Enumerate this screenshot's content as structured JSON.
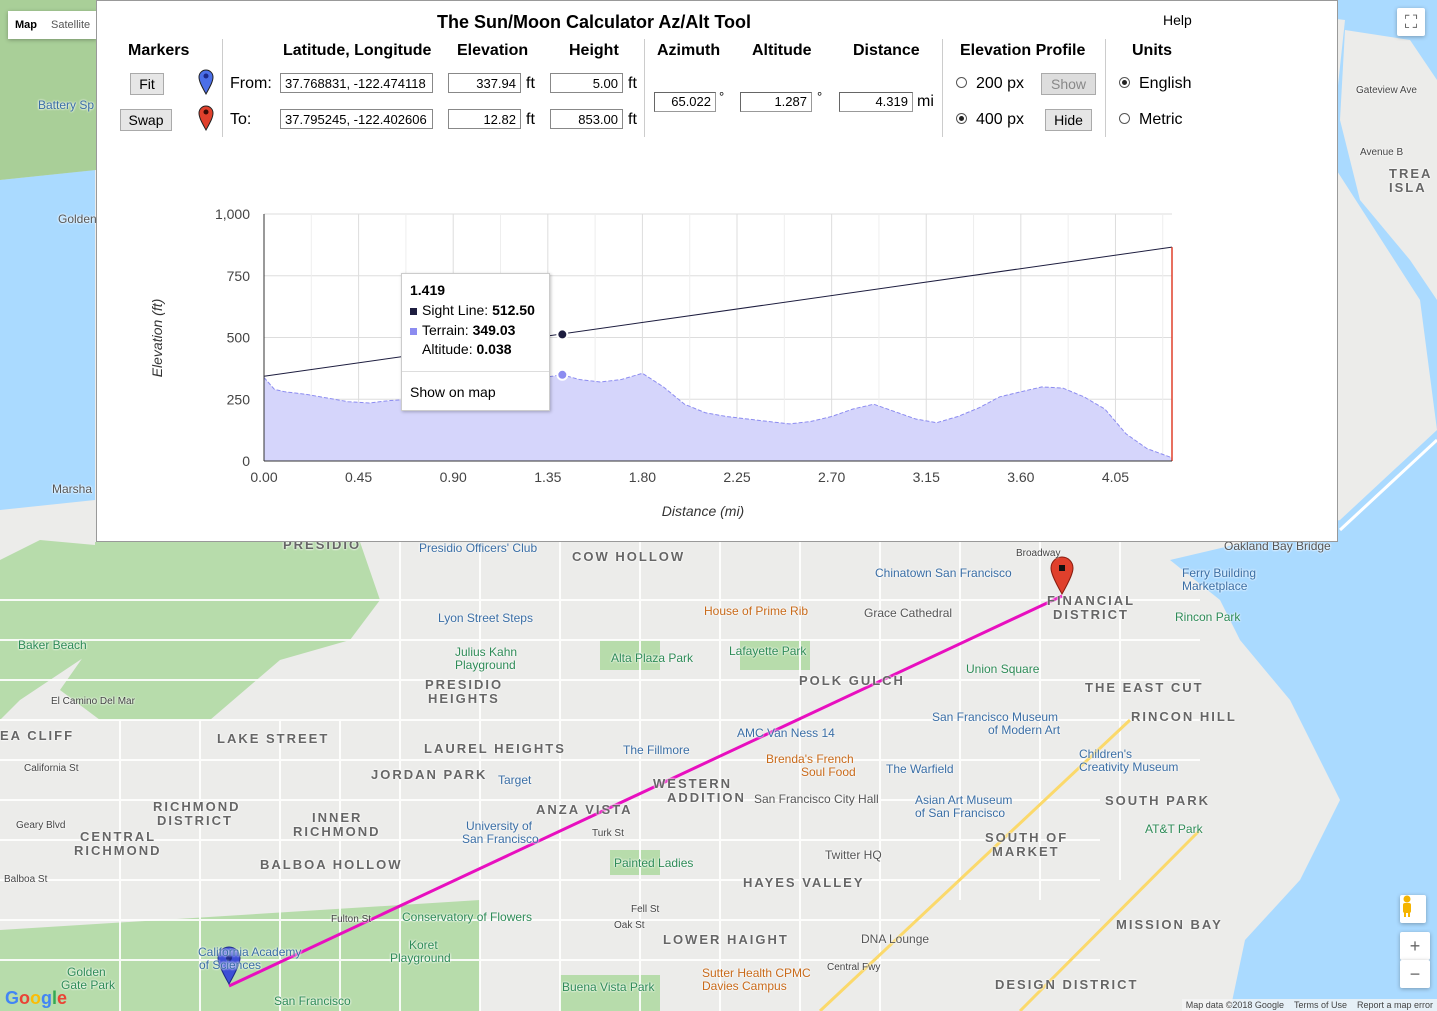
{
  "map": {
    "type_control": {
      "map": "Map",
      "satellite": "Satellite"
    },
    "labels": [
      {
        "t": "Battery Sp",
        "c": "poi-blue"
      },
      {
        "t": "Golden",
        "c": ""
      },
      {
        "t": "Marsha",
        "c": ""
      },
      {
        "t": "PRESIDIO",
        "c": "district"
      },
      {
        "t": "Presidio Officers' Club",
        "c": "poi-blue"
      },
      {
        "t": "COW HOLLOW",
        "c": "district"
      },
      {
        "t": "Chinatown San Francisco",
        "c": "poi-blue"
      },
      {
        "t": "Broadway",
        "c": "street"
      },
      {
        "t": "Oakland Bay Bridge",
        "c": ""
      },
      {
        "t": "Ferry Building",
        "c": "poi-blue"
      },
      {
        "t": "Marketplace",
        "c": "poi-blue"
      },
      {
        "t": "House of Prime Rib",
        "c": "poi-orange"
      },
      {
        "t": "Grace Cathedral",
        "c": ""
      },
      {
        "t": "FINANCIAL",
        "c": "district"
      },
      {
        "t": "DISTRICT",
        "c": "district"
      },
      {
        "t": "Rincon Park",
        "c": "poi-green"
      },
      {
        "t": "Baker Beach",
        "c": "poi-green"
      },
      {
        "t": "Lyon Street Steps",
        "c": "poi-blue"
      },
      {
        "t": "Lafayette Park",
        "c": "poi-green"
      },
      {
        "t": "Julius Kahn",
        "c": "poi-green"
      },
      {
        "t": "Playground",
        "c": "poi-green"
      },
      {
        "t": "Alta Plaza Park",
        "c": "poi-green"
      },
      {
        "t": "Union Square",
        "c": "poi-green"
      },
      {
        "t": "POLK GULCH",
        "c": "district"
      },
      {
        "t": "THE EAST CUT",
        "c": "district"
      },
      {
        "t": "PRESIDIO",
        "c": "district"
      },
      {
        "t": "HEIGHTS",
        "c": "district"
      },
      {
        "t": "RINCON HILL",
        "c": "district"
      },
      {
        "t": "San Francisco Museum",
        "c": "poi-blue"
      },
      {
        "t": "of Modern Art",
        "c": "poi-blue"
      },
      {
        "t": "EA CLIFF",
        "c": "district"
      },
      {
        "t": "LAKE STREET",
        "c": "district"
      },
      {
        "t": "LAUREL HEIGHTS",
        "c": "district"
      },
      {
        "t": "AMC Van Ness 14",
        "c": "poi-blue"
      },
      {
        "t": "The Fillmore",
        "c": "poi-blue"
      },
      {
        "t": "Children's",
        "c": "poi-blue"
      },
      {
        "t": "Creativity Museum",
        "c": "poi-blue"
      },
      {
        "t": "Brenda's French",
        "c": "poi-orange"
      },
      {
        "t": "Soul Food",
        "c": "poi-orange"
      },
      {
        "t": "The Warfield",
        "c": "poi-blue"
      },
      {
        "t": "JORDAN PARK",
        "c": "district"
      },
      {
        "t": "Target",
        "c": "poi-blue"
      },
      {
        "t": "WESTERN",
        "c": "district"
      },
      {
        "t": "ADDITION",
        "c": "district"
      },
      {
        "t": "RICHMOND",
        "c": "district"
      },
      {
        "t": "DISTRICT",
        "c": "district"
      },
      {
        "t": "ANZA VISTA",
        "c": "district"
      },
      {
        "t": "San Francisco City Hall",
        "c": ""
      },
      {
        "t": "Asian Art Museum",
        "c": "poi-blue"
      },
      {
        "t": "of San Francisco",
        "c": "poi-blue"
      },
      {
        "t": "SOUTH PARK",
        "c": "district"
      },
      {
        "t": "INNER",
        "c": "district"
      },
      {
        "t": "RICHMOND",
        "c": "district"
      },
      {
        "t": "CENTRAL",
        "c": "district"
      },
      {
        "t": "RICHMOND",
        "c": "district"
      },
      {
        "t": "University of",
        "c": "poi-blue"
      },
      {
        "t": "San Francisco",
        "c": "poi-blue"
      },
      {
        "t": "SOUTH OF",
        "c": "district"
      },
      {
        "t": "MARKET",
        "c": "district"
      },
      {
        "t": "AT&T Park",
        "c": "poi-green"
      },
      {
        "t": "Painted Ladies",
        "c": "poi-green"
      },
      {
        "t": "Twitter HQ",
        "c": ""
      },
      {
        "t": "BALBOA HOLLOW",
        "c": "district"
      },
      {
        "t": "HAYES VALLEY",
        "c": "district"
      },
      {
        "t": "Conservatory of Flowers",
        "c": "poi-green"
      },
      {
        "t": "MISSION BAY",
        "c": "district"
      },
      {
        "t": "California Academy",
        "c": "poi-blue"
      },
      {
        "t": "of Sciences",
        "c": "poi-blue"
      },
      {
        "t": "Koret",
        "c": "poi-green"
      },
      {
        "t": "Playground",
        "c": "poi-green"
      },
      {
        "t": "LOWER HAIGHT",
        "c": "district"
      },
      {
        "t": "DNA Lounge",
        "c": ""
      },
      {
        "t": "Golden",
        "c": "poi-green"
      },
      {
        "t": "Gate Park",
        "c": "poi-green"
      },
      {
        "t": "Sutter Health CPMC",
        "c": "poi-orange"
      },
      {
        "t": "Davies Campus",
        "c": "poi-orange"
      },
      {
        "t": "Buena Vista Park",
        "c": "poi-green"
      },
      {
        "t": "San Francisco",
        "c": "poi-green"
      },
      {
        "t": "DESIGN DISTRICT",
        "c": "district"
      },
      {
        "t": "Central Fwy",
        "c": "street"
      },
      {
        "t": "TREA",
        "c": "district"
      },
      {
        "t": "ISLA",
        "c": "district"
      },
      {
        "t": "Gateview Ave",
        "c": "street"
      },
      {
        "t": "Avenue B",
        "c": "street"
      },
      {
        "t": "California St",
        "c": "street"
      },
      {
        "t": "Geary Blvd",
        "c": "street"
      },
      {
        "t": "Fulton St",
        "c": "street"
      },
      {
        "t": "Turk St",
        "c": "street"
      },
      {
        "t": "Fell St",
        "c": "street"
      },
      {
        "t": "Oak St",
        "c": "street"
      },
      {
        "t": "Balboa St",
        "c": "street"
      },
      {
        "t": "El Camino Del Mar",
        "c": "street"
      }
    ],
    "google_logo": "Google",
    "footer": {
      "data": "Map data ©2018 Google",
      "terms": "Terms of Use",
      "report": "Report a map error"
    },
    "zoom_in": "+",
    "zoom_out": "−",
    "colors": {
      "land": "#ececea",
      "water": "#aadaff",
      "park": "#b7dcab",
      "route": "#e80fbf",
      "terrain": "#cfe2c0"
    }
  },
  "panel": {
    "title": "The Sun/Moon Calculator Az/Alt Tool",
    "help": "Help",
    "headers": {
      "markers": "Markers",
      "latlon": "Latitude, Longitude",
      "elevation": "Elevation",
      "height": "Height",
      "azimuth": "Azimuth",
      "altitude": "Altitude",
      "distance": "Distance",
      "profile": "Elevation Profile",
      "units": "Units"
    },
    "fit_label": "Fit",
    "swap_label": "Swap",
    "from_label": "From:",
    "to_label": "To:",
    "from": {
      "latlon": "37.768831, -122.474118",
      "elevation": "337.94",
      "height": "5.00"
    },
    "to": {
      "latlon": "37.795245, -122.402606",
      "elevation": "12.82",
      "height": "853.00"
    },
    "unit_ft": "ft",
    "azimuth_value": "65.022",
    "altitude_value": "1.287",
    "deg": "°",
    "distance_value": "4.319",
    "unit_mi": "mi",
    "profile_200": "200 px",
    "profile_400": "400 px",
    "profile_selected": "400 px",
    "show_label": "Show",
    "hide_label": "Hide",
    "units_english": "English",
    "units_metric": "Metric",
    "units_selected": "English",
    "colors": {
      "from_marker": "#4b6fe8",
      "to_marker": "#e0402c"
    }
  },
  "chart_data": {
    "type": "area",
    "xlabel": "Distance (mi)",
    "ylabel": "Elevation (ft)",
    "xlim": [
      0,
      4.319
    ],
    "ylim": [
      0,
      1000
    ],
    "xticks": [
      "0.00",
      "0.45",
      "0.90",
      "1.35",
      "1.80",
      "2.25",
      "2.70",
      "3.15",
      "3.60",
      "4.05"
    ],
    "yticks": [
      "0",
      "250",
      "500",
      "750",
      "1,000"
    ],
    "grid": true,
    "series": [
      {
        "name": "Sight Line",
        "color": "#1d1d3f",
        "x": [
          0,
          4.319
        ],
        "y": [
          342.94,
          865.82
        ]
      },
      {
        "name": "Terrain",
        "color": "#8c8cf0",
        "x": [
          0,
          0.05,
          0.1,
          0.2,
          0.3,
          0.4,
          0.5,
          0.6,
          0.7,
          0.8,
          0.9,
          1.0,
          1.1,
          1.2,
          1.3,
          1.419,
          1.5,
          1.6,
          1.7,
          1.8,
          1.9,
          2.0,
          2.1,
          2.2,
          2.3,
          2.4,
          2.5,
          2.6,
          2.7,
          2.8,
          2.9,
          3.0,
          3.1,
          3.2,
          3.3,
          3.4,
          3.5,
          3.6,
          3.7,
          3.8,
          3.9,
          4.0,
          4.1,
          4.2,
          4.319
        ],
        "y": [
          337.94,
          290,
          280,
          270,
          255,
          240,
          235,
          245,
          250,
          260,
          265,
          280,
          300,
          315,
          335,
          349.03,
          330,
          320,
          330,
          355,
          300,
          230,
          195,
          180,
          170,
          160,
          150,
          160,
          180,
          210,
          230,
          200,
          170,
          155,
          180,
          215,
          260,
          280,
          300,
          295,
          260,
          210,
          110,
          50,
          12.82
        ]
      }
    ],
    "tooltip": {
      "x": "1.419",
      "sight_label": "Sight Line:",
      "sight_value": "512.50",
      "terrain_label": "Terrain:",
      "terrain_value": "349.03",
      "altitude_label": "Altitude:",
      "altitude_value": "0.038",
      "link": "Show on map"
    }
  }
}
